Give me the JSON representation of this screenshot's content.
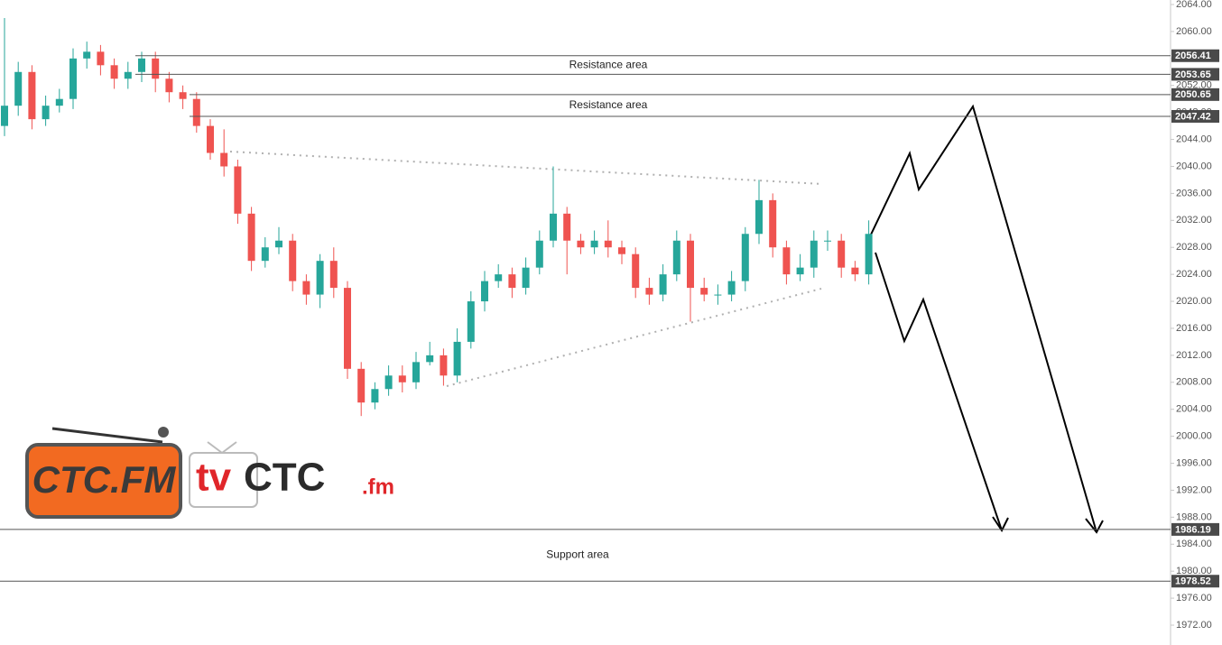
{
  "chart_data": {
    "type": "candlestick",
    "up_color": "#26a69a",
    "down_color": "#ef5350",
    "open": [
      2046,
      2049,
      2054,
      2047,
      2049,
      2050,
      2056,
      2057,
      2055,
      2053,
      2054,
      2056,
      2053,
      2051,
      2050,
      2046,
      2042,
      2040,
      2033,
      2026,
      2028,
      2029,
      2023,
      2021,
      2026,
      2022,
      2010,
      2005,
      2007,
      2009,
      2008,
      2011,
      2012,
      2009,
      2014,
      2020,
      2023,
      2024,
      2022,
      2025,
      2029,
      2033,
      2029,
      2028,
      2029,
      2028,
      2027,
      2022,
      2021,
      2024,
      2029,
      2022,
      2021,
      2021,
      2023,
      2030,
      2035,
      2028,
      2024,
      2025,
      2029,
      2029,
      2025,
      2024
    ],
    "high": [
      2062,
      2055.5,
      2055,
      2050.5,
      2051.5,
      2057.5,
      2058.5,
      2058,
      2056,
      2055.5,
      2057,
      2057,
      2054,
      2052,
      2051,
      2047,
      2045.5,
      2041,
      2034,
      2029.5,
      2031,
      2030,
      2024,
      2027,
      2028,
      2023,
      2011,
      2008,
      2010.5,
      2010.5,
      2012.5,
      2014,
      2013,
      2016,
      2021.5,
      2024.5,
      2025.5,
      2025,
      2026.5,
      2030.5,
      2040,
      2034,
      2030,
      2030.5,
      2032,
      2029,
      2028,
      2023.5,
      2025.5,
      2030.5,
      2030,
      2023.5,
      2022.5,
      2024.5,
      2031,
      2038,
      2036,
      2029,
      2027,
      2030.5,
      2030.5,
      2030,
      2026,
      2032
    ],
    "low": [
      2044.5,
      2047.5,
      2045.5,
      2046,
      2048,
      2048.5,
      2054.5,
      2053.5,
      2051.5,
      2051.5,
      2052.5,
      2051,
      2049.5,
      2048.5,
      2045,
      2041,
      2038.5,
      2031.5,
      2024.5,
      2025,
      2027,
      2021.5,
      2019.5,
      2019,
      2020.5,
      2008.5,
      2003,
      2004,
      2006,
      2006.5,
      2007,
      2010.5,
      2007.5,
      2008,
      2013,
      2018.5,
      2022,
      2020.5,
      2021,
      2024,
      2028,
      2024,
      2027,
      2027,
      2026.5,
      2025.5,
      2020.5,
      2019.5,
      2020,
      2023,
      2017,
      2020,
      2019.5,
      2020,
      2021.5,
      2028.5,
      2026.5,
      2022.5,
      2023,
      2023.5,
      2027.5,
      2023.5,
      2023,
      2022.5
    ],
    "close": [
      2049,
      2054,
      2047,
      2049,
      2050,
      2056,
      2057,
      2055,
      2053,
      2054,
      2056,
      2053,
      2051,
      2050,
      2046,
      2042,
      2040,
      2033,
      2026,
      2028,
      2029,
      2023,
      2021,
      2026,
      2022,
      2010,
      2005,
      2007,
      2009,
      2008,
      2011,
      2012,
      2009,
      2014,
      2020,
      2023,
      2024,
      2022,
      2025,
      2029,
      2033,
      2029,
      2028,
      2029,
      2028,
      2027,
      2022,
      2021,
      2024,
      2029,
      2022,
      2021,
      2021,
      2023,
      2030,
      2035,
      2028,
      2024,
      2025,
      2029,
      2029,
      2025,
      2024,
      2030
    ],
    "ylim": [
      1972,
      2064
    ],
    "yticks": [
      {
        "value": 1972,
        "label": "1972.00"
      },
      {
        "value": 1976,
        "label": "1976.00"
      },
      {
        "value": 1980,
        "label": "1980.00"
      },
      {
        "value": 1984,
        "label": "1984.00"
      },
      {
        "value": 1988,
        "label": "1988.00"
      },
      {
        "value": 1992,
        "label": "1992.00"
      },
      {
        "value": 1996,
        "label": "1996.00"
      },
      {
        "value": 2000,
        "label": "2000.00"
      },
      {
        "value": 2004,
        "label": "2004.00"
      },
      {
        "value": 2008,
        "label": "2008.00"
      },
      {
        "value": 2012,
        "label": "2012.00"
      },
      {
        "value": 2016,
        "label": "2016.00"
      },
      {
        "value": 2020,
        "label": "2020.00"
      },
      {
        "value": 2024,
        "label": "2024.00"
      },
      {
        "value": 2028,
        "label": "2028.00"
      },
      {
        "value": 2032,
        "label": "2032.00"
      },
      {
        "value": 2036,
        "label": "2036.00"
      },
      {
        "value": 2040,
        "label": "2040.00"
      },
      {
        "value": 2044,
        "label": "2044.00"
      },
      {
        "value": 2048,
        "label": "2048.00"
      },
      {
        "value": 2052,
        "label": "2052.00"
      },
      {
        "value": 2056,
        "label": "2056.00"
      },
      {
        "value": 2060,
        "label": "2060.00"
      },
      {
        "value": 2064,
        "label": "2064.00"
      }
    ],
    "grid": false,
    "zones": [
      {
        "label": "Resistance area",
        "top": 2056.41,
        "bottom": 2053.65
      },
      {
        "label": "Resistance area",
        "top": 2050.65,
        "bottom": 2047.42
      },
      {
        "label": "Support area",
        "top": 1986.19,
        "bottom": 1978.52
      }
    ]
  },
  "logos": {
    "left": "CTC.FM",
    "tv": "tv",
    "ctc": "CTC",
    "fm": ".fm"
  }
}
